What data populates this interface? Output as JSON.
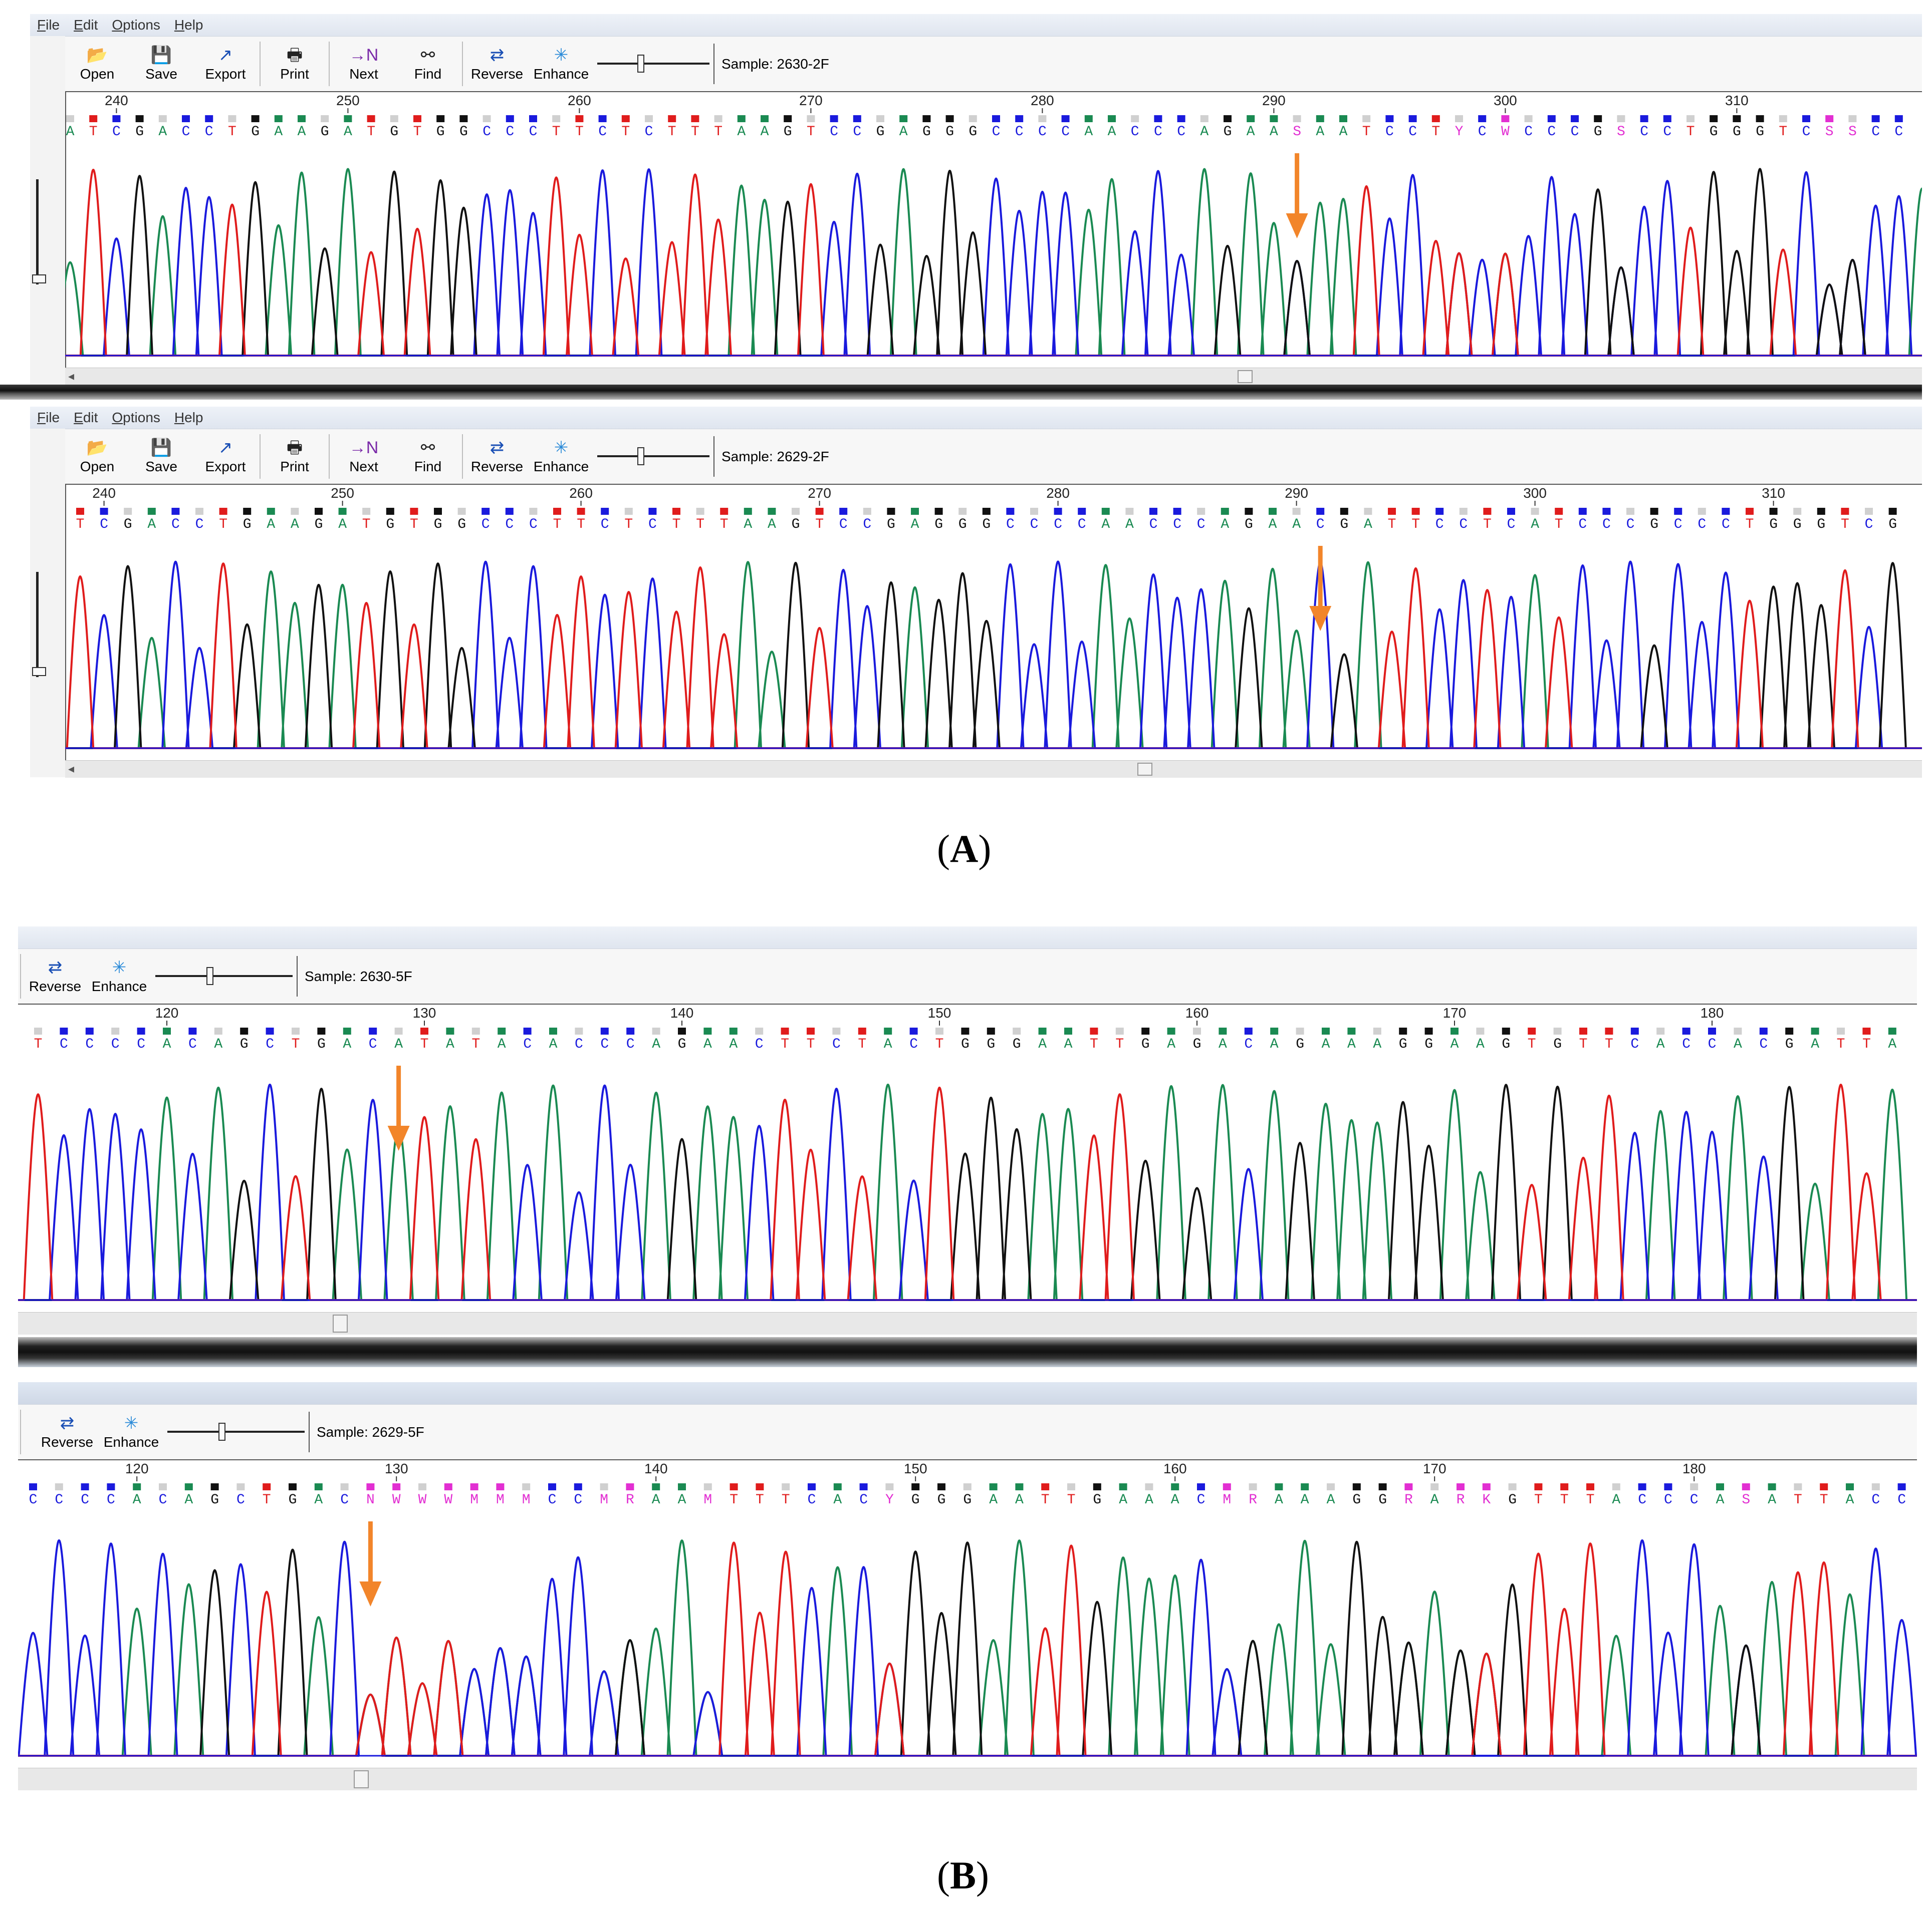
{
  "colors": {
    "A": "#1a8a52",
    "C": "#1a1add",
    "G": "#111111",
    "T": "#e01c1c",
    "ambiguous": "#e22fd2",
    "arrow": "#f2852a"
  },
  "menu": {
    "file": "File",
    "edit": "Edit",
    "options": "Options",
    "help": "Help"
  },
  "toolbar": {
    "open": "Open",
    "save": "Save",
    "export": "Export",
    "print": "Print",
    "next": "Next",
    "find": "Find",
    "reverse": "Reverse",
    "enhance": "Enhance"
  },
  "icons": [
    "open-folder-icon",
    "save-disk-icon",
    "export-arrow-icon",
    "printer-icon",
    "next-n-icon",
    "binoculars-find-icon",
    "reverse-arrows-icon",
    "enhance-sparkle-icon"
  ],
  "panels": [
    {
      "sample": "Sample: 2630-2F",
      "positions": [
        240,
        250,
        260,
        270,
        280,
        290,
        300,
        310
      ],
      "sequence": "ATCGACCTGAAGATGTGGCCCTTCTCTTTAAGTCCGAGGGCCCCAACCCAGAASAATCCTYCWCCCGSCCTGGGTCSSCCA"
    },
    {
      "sample": "Sample: 2629-2F",
      "positions": [
        240,
        250,
        260,
        270,
        280,
        290,
        300,
        310
      ],
      "sequence": "TCGACCTGAAGATGTGGCCCTTCTCTTTAAGTCCGAGGGCCCCAACCCAGAACGATTCCTCATCCCGCCCTGGGTCG"
    },
    {
      "sample": "Sample: 2630-5F",
      "positions": [
        120,
        130,
        140,
        150,
        160,
        170,
        180
      ],
      "sequence": "TCCCCACAGCTGACATATACACCCAGAACTTCTACTGGGAATTGAGACAGAAAGGAAGTGTTCACCACGATTA"
    },
    {
      "sample": "Sample: 2629-5F",
      "positions": [
        120,
        130,
        140,
        150,
        160,
        170,
        180
      ],
      "sequence": "CCCCACAGCTGACNWWWMMMCCMRAAMTTTCACYGGGAATTGAAACMRAAAGGRARKGTTTACCCASATTACC"
    }
  ],
  "captions": {
    "a": "A",
    "b": "B"
  }
}
